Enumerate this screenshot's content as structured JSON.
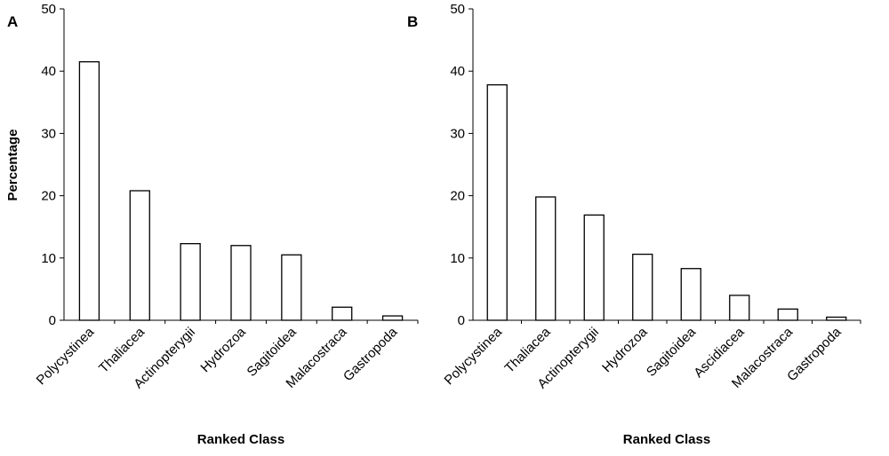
{
  "figure": {
    "ylabel": "Percentage"
  },
  "chart_data": [
    {
      "type": "bar",
      "panel_label": "A",
      "xlabel": "Ranked Class",
      "ylabel": "Percentage",
      "ylim": [
        0,
        50
      ],
      "yticks": [
        "0",
        "10",
        "20",
        "30",
        "40",
        "50"
      ],
      "categories": [
        "Polycystinea",
        "Thaliacea",
        "Actinopterygii",
        "Hydrozoa",
        "Sagitoidea",
        "Malacostraca",
        "Gastropoda"
      ],
      "values": [
        41.5,
        20.8,
        12.3,
        12.0,
        10.5,
        2.1,
        0.7
      ],
      "grid": false,
      "colors": {
        "bar_fill": "#ffffff",
        "bar_stroke": "#000000"
      }
    },
    {
      "type": "bar",
      "panel_label": "B",
      "xlabel": "Ranked Class",
      "ylabel": "",
      "ylim": [
        0,
        50
      ],
      "yticks": [
        "0",
        "10",
        "20",
        "30",
        "40",
        "50"
      ],
      "categories": [
        "Polycystinea",
        "Thaliacea",
        "Actinopterygii",
        "Hydrozoa",
        "Sagitoidea",
        "Ascidiacea",
        "Malacostraca",
        "Gastropoda"
      ],
      "values": [
        37.8,
        19.8,
        16.9,
        10.6,
        8.3,
        4.0,
        1.8,
        0.5
      ],
      "grid": false,
      "colors": {
        "bar_fill": "#ffffff",
        "bar_stroke": "#000000"
      }
    }
  ]
}
